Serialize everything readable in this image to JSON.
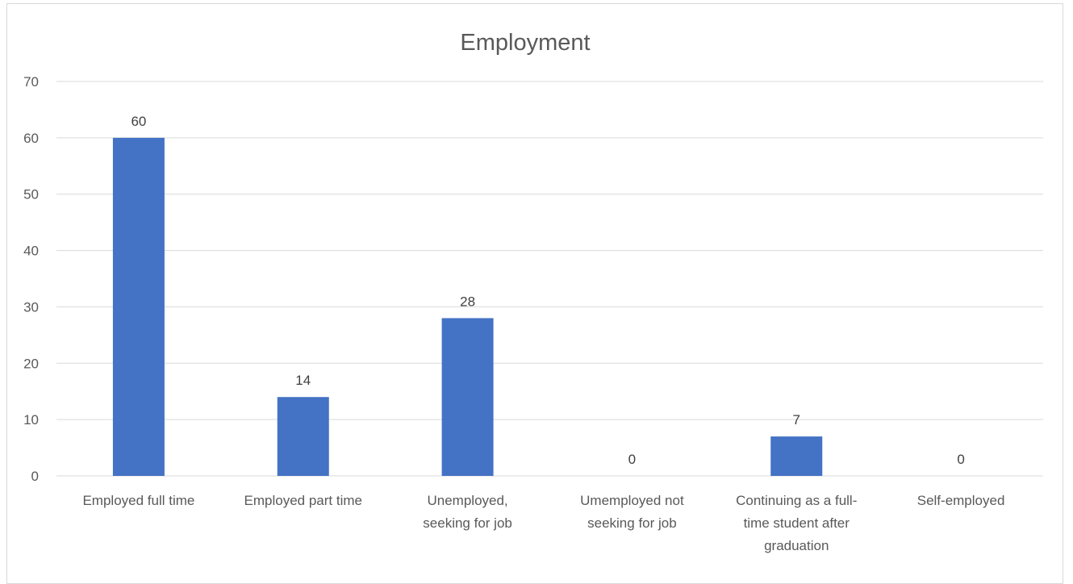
{
  "chart_data": {
    "type": "bar",
    "title": "Employment",
    "categories": [
      "Employed full time",
      "Employed part time",
      "Unemployed, seeking for job",
      "Umemployed not seeking for job",
      "Continuing as a full-time student after graduation",
      "Self-employed"
    ],
    "category_lines": [
      [
        "Employed full time"
      ],
      [
        "Employed part time"
      ],
      [
        "Unemployed,",
        "seeking for job"
      ],
      [
        "Umemployed not",
        "seeking for job"
      ],
      [
        "Continuing as a full-",
        "time student after",
        "graduation"
      ],
      [
        "Self-employed"
      ]
    ],
    "values": [
      60,
      14,
      28,
      0,
      7,
      0
    ],
    "yticks": [
      0,
      10,
      20,
      30,
      40,
      50,
      60,
      70
    ],
    "ylim": [
      0,
      70
    ],
    "xlabel": "",
    "ylabel": "",
    "grid": true,
    "data_labels": true,
    "legend": "none",
    "bar_color": "#4472c4"
  }
}
